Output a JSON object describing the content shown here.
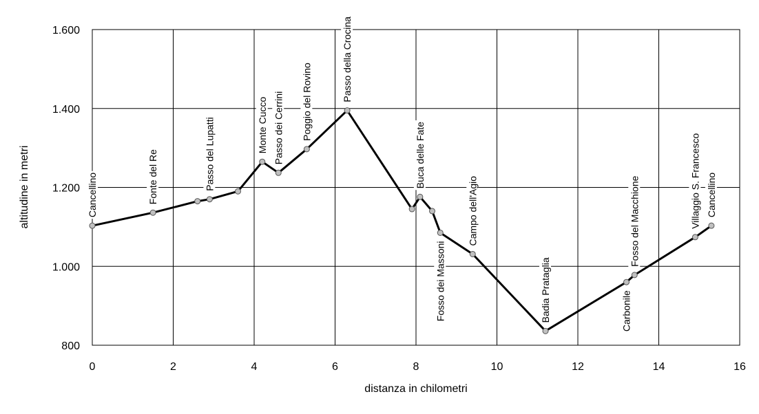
{
  "chart_data": {
    "type": "line",
    "title": "",
    "xlabel": "distanza in chilometri",
    "ylabel": "altitudine  in metri",
    "xlim": [
      0,
      16
    ],
    "ylim": [
      800,
      1600
    ],
    "x_ticks": [
      0,
      2,
      4,
      6,
      8,
      10,
      12,
      14,
      16
    ],
    "x_tick_labels": [
      "0",
      "2",
      "4",
      "6",
      "8",
      "10",
      "12",
      "14",
      "16"
    ],
    "y_ticks": [
      800,
      1000,
      1200,
      1400,
      1600
    ],
    "y_tick_labels": [
      "800",
      "1.000",
      "1.200",
      "1.400",
      "1.600"
    ],
    "grid": true,
    "legend": "none",
    "series": [
      {
        "x": [
          0,
          1.5,
          2.6,
          2.9,
          3.6,
          4.2,
          4.6,
          5.3,
          6.3,
          7.9,
          8.1,
          8.4,
          8.6,
          9.4,
          11.2,
          13.2,
          13.4,
          14.9,
          15.3
        ],
        "y": [
          1103,
          1136,
          1165,
          1170,
          1190,
          1265,
          1237,
          1297,
          1395,
          1145,
          1176,
          1140,
          1085,
          1031,
          836,
          960,
          978,
          1074,
          1103
        ]
      }
    ],
    "annotations": [
      {
        "text": "Cancellino",
        "x": 0,
        "y": 1103,
        "side": "above"
      },
      {
        "text": "Fonte del Re",
        "x": 1.5,
        "y": 1136,
        "side": "above"
      },
      {
        "text": "Passo del Lupatti",
        "x": 2.9,
        "y": 1170,
        "side": "above"
      },
      {
        "text": "Monte Cucco",
        "x": 4.2,
        "y": 1265,
        "side": "above"
      },
      {
        "text": "Passo dei Cerrini",
        "x": 4.6,
        "y": 1237,
        "side": "above"
      },
      {
        "text": "Poggio del Rovino",
        "x": 5.3,
        "y": 1297,
        "side": "above"
      },
      {
        "text": "Passo della Crocina",
        "x": 6.3,
        "y": 1395,
        "side": "above"
      },
      {
        "text": "Buca delle Fate",
        "x": 8.1,
        "y": 1176,
        "side": "above"
      },
      {
        "text": "Fosso dei Massoni",
        "x": 8.6,
        "y": 1085,
        "side": "below"
      },
      {
        "text": "Campo dell'Agio",
        "x": 9.4,
        "y": 1031,
        "side": "above"
      },
      {
        "text": "Badia Prataglia",
        "x": 11.2,
        "y": 836,
        "side": "above"
      },
      {
        "text": "Carbonile",
        "x": 13.2,
        "y": 960,
        "side": "below"
      },
      {
        "text": "Fosso del Macchione",
        "x": 13.4,
        "y": 978,
        "side": "above"
      },
      {
        "text": "Villaggio S. Francesco",
        "x": 14.9,
        "y": 1074,
        "side": "above"
      },
      {
        "text": "Cancellino",
        "x": 15.3,
        "y": 1103,
        "side": "above"
      }
    ]
  }
}
